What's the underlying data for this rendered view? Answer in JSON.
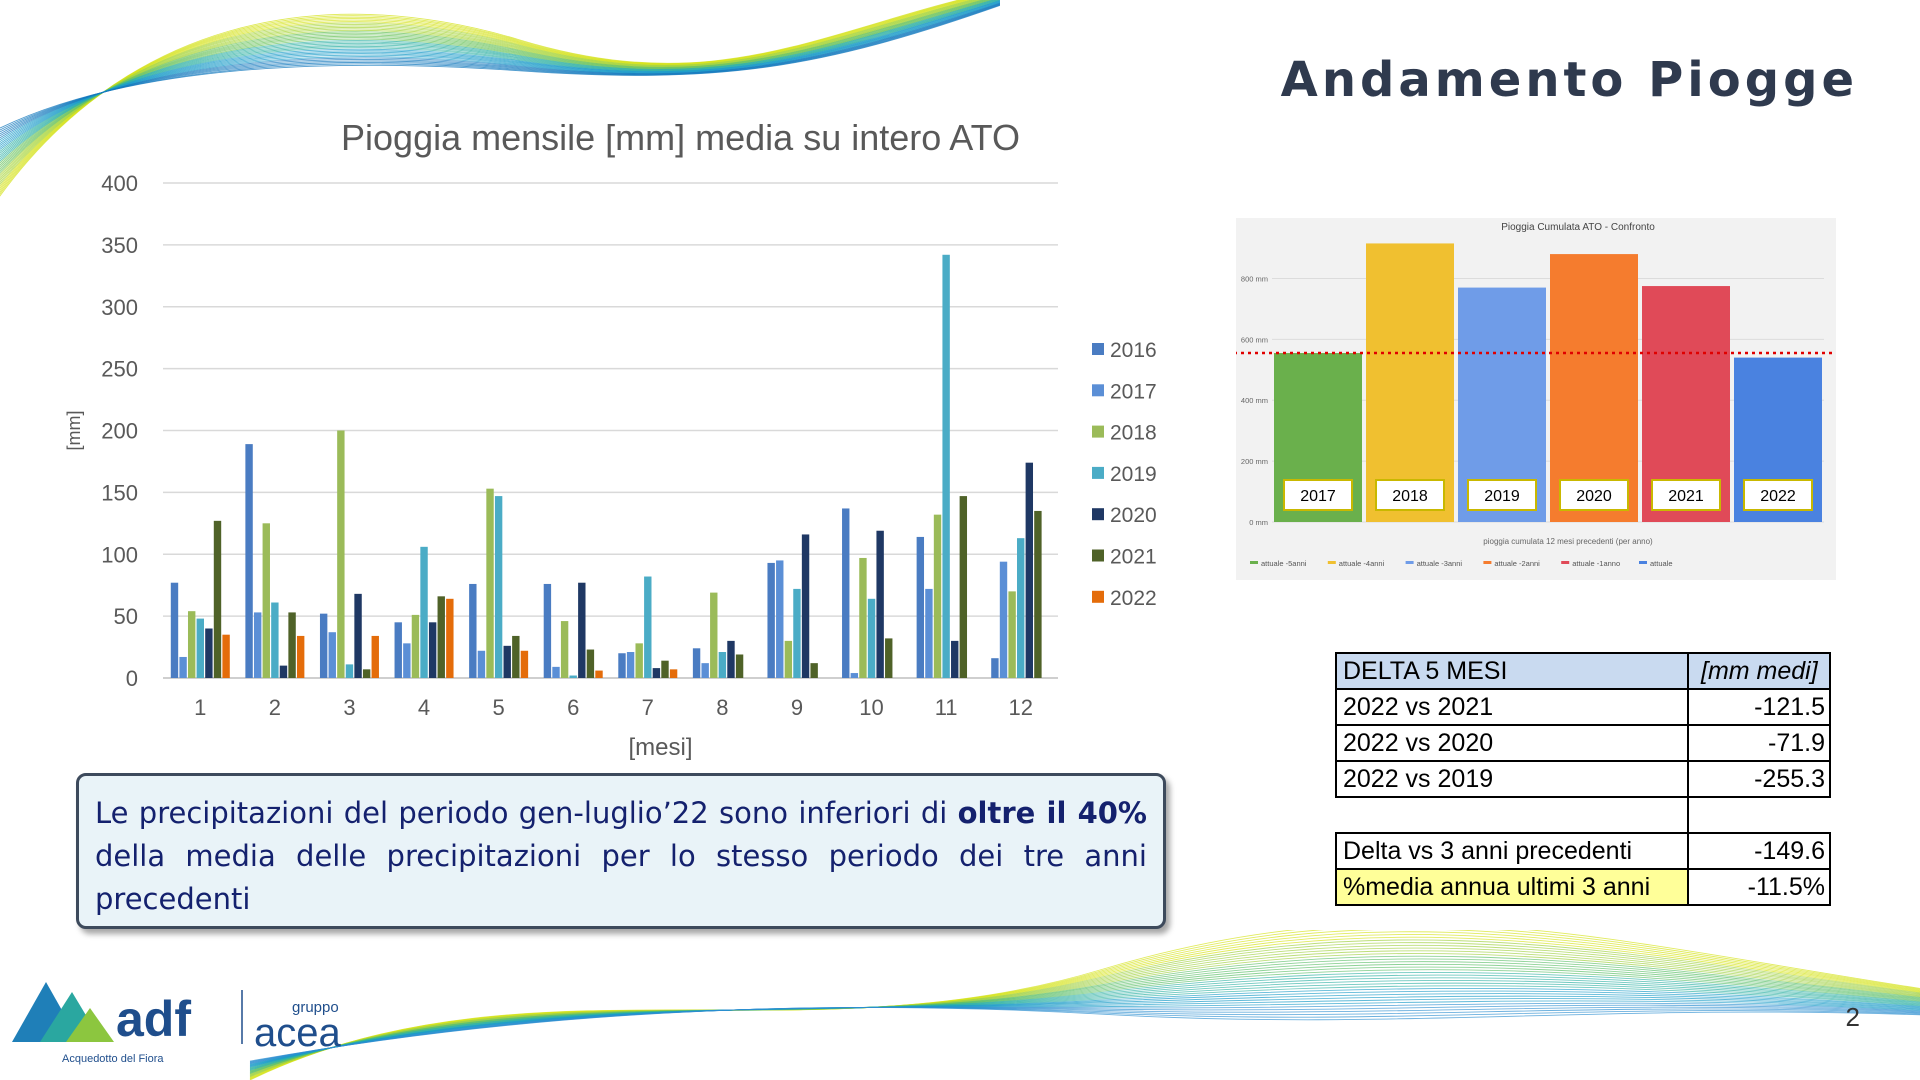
{
  "slide": {
    "title": "Andamento Piogge",
    "page_number": "2"
  },
  "chart_data": [
    {
      "type": "bar",
      "title": "Pioggia mensile [mm] media su intero ATO",
      "xlabel": "[mesi]",
      "ylabel": "[mm]",
      "ylim": [
        0,
        400
      ],
      "yticks": [
        0,
        50,
        100,
        150,
        200,
        250,
        300,
        350,
        400
      ],
      "grid": true,
      "legend": "right",
      "categories": [
        "1",
        "2",
        "3",
        "4",
        "5",
        "6",
        "7",
        "8",
        "9",
        "10",
        "11",
        "12"
      ],
      "series": [
        {
          "name": "2016",
          "color": "#4a7cc2",
          "values": [
            77,
            189,
            52,
            45,
            76,
            76,
            20,
            24,
            93,
            137,
            114,
            16
          ]
        },
        {
          "name": "2017",
          "color": "#5b8fd6",
          "values": [
            17,
            53,
            37,
            28,
            22,
            9,
            21,
            12,
            95,
            4,
            72,
            94
          ]
        },
        {
          "name": "2018",
          "color": "#9bbb59",
          "values": [
            54,
            125,
            200,
            51,
            153,
            46,
            28,
            69,
            30,
            97,
            132,
            70
          ]
        },
        {
          "name": "2019",
          "color": "#4bacc6",
          "values": [
            48,
            61,
            11,
            106,
            147,
            2,
            82,
            21,
            72,
            64,
            342,
            113
          ]
        },
        {
          "name": "2020",
          "color": "#1f3864",
          "values": [
            40,
            10,
            68,
            45,
            26,
            77,
            8,
            30,
            116,
            119,
            30,
            174
          ]
        },
        {
          "name": "2021",
          "color": "#4f6228",
          "values": [
            127,
            53,
            7,
            66,
            34,
            23,
            14,
            19,
            12,
            32,
            147,
            135
          ]
        },
        {
          "name": "2022",
          "color": "#e46c0a",
          "values": [
            35,
            34,
            34,
            64,
            22,
            6,
            7,
            null,
            null,
            null,
            null,
            null
          ]
        }
      ]
    },
    {
      "type": "bar",
      "title": "Pioggia Cumulata ATO - Confronto",
      "xlabel": "pioggia cumulata 12 mesi precedenti (per anno)",
      "ylabel": "",
      "ylim": [
        0,
        900
      ],
      "yticks": [
        "0 mm",
        "200 mm",
        "400 mm",
        "600 mm",
        "800 mm"
      ],
      "ytick_values": [
        0,
        200,
        400,
        600,
        800
      ],
      "grid": true,
      "legend": "bottom",
      "reference_line": 555,
      "categories": [
        "2017",
        "2018",
        "2019",
        "2020",
        "2021",
        "2022"
      ],
      "values": [
        555,
        915,
        770,
        880,
        775,
        540
      ],
      "colors": [
        "#6ab04c",
        "#f0c030",
        "#6f9ce8",
        "#f57c2e",
        "#e04a58",
        "#4a82e0"
      ],
      "legend_entries": [
        {
          "name": "attuale -5anni",
          "color": "#6ab04c"
        },
        {
          "name": "attuale -4anni",
          "color": "#f0c030"
        },
        {
          "name": "attuale -3anni",
          "color": "#6f9ce8"
        },
        {
          "name": "attuale -2anni",
          "color": "#f57c2e"
        },
        {
          "name": "attuale -1anno",
          "color": "#e04a58"
        },
        {
          "name": "attuale",
          "color": "#4a82e0"
        }
      ]
    }
  ],
  "callout": {
    "part1": "Le precipitazioni del periodo gen-luglio’22 sono inferiori di ",
    "bold1": "oltre il 40%",
    "part2": " della media delle precipitazioni per lo stesso periodo dei tre anni precedenti"
  },
  "delta_table": {
    "header_label": "DELTA 5 MESI",
    "header_unit": "[mm medi]",
    "rows": [
      {
        "label": "2022 vs 2021",
        "value": "-121.5"
      },
      {
        "label": "2022 vs 2020",
        "value": "-71.9"
      },
      {
        "label": "2022 vs 2019",
        "value": "-255.3"
      }
    ],
    "summary": [
      {
        "label": "Delta vs 3 anni precedenti",
        "value": "-149.6"
      },
      {
        "label": "%media annua ultimi 3 anni",
        "value": "-11.5%"
      }
    ]
  },
  "logo": {
    "brand": "adf",
    "brand_full": "Acquedotto del Fiora",
    "group_label": "gruppo",
    "group_name": "acea"
  }
}
